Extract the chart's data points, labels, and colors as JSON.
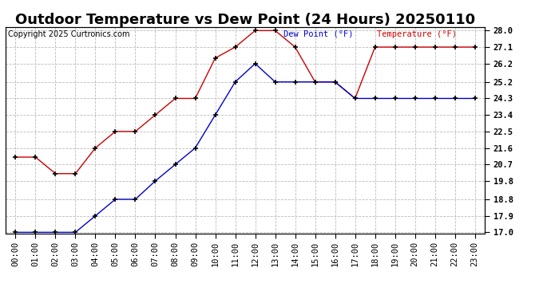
{
  "title": "Outdoor Temperature vs Dew Point (24 Hours) 20250110",
  "copyright": "Copyright 2025 Curtronics.com",
  "legend_dew": "Dew Point (°F)",
  "legend_temp": "Temperature (°F)",
  "hours": [
    "00:00",
    "01:00",
    "02:00",
    "03:00",
    "04:00",
    "05:00",
    "06:00",
    "07:00",
    "08:00",
    "09:00",
    "10:00",
    "11:00",
    "12:00",
    "13:00",
    "14:00",
    "15:00",
    "16:00",
    "17:00",
    "18:00",
    "19:00",
    "20:00",
    "21:00",
    "22:00",
    "23:00"
  ],
  "temp_values": [
    21.1,
    21.1,
    20.2,
    20.2,
    21.6,
    22.5,
    22.5,
    23.4,
    24.3,
    24.3,
    26.5,
    27.1,
    28.0,
    28.0,
    27.1,
    25.2,
    25.2,
    24.3,
    27.1,
    27.1,
    27.1,
    27.1,
    27.1,
    27.1
  ],
  "dew_values": [
    17.0,
    17.0,
    17.0,
    17.0,
    17.9,
    18.8,
    18.8,
    19.8,
    20.7,
    21.6,
    23.4,
    25.2,
    26.2,
    25.2,
    25.2,
    25.2,
    25.2,
    24.3,
    24.3,
    24.3,
    24.3,
    24.3,
    24.3,
    24.3
  ],
  "ylim_min": 17.0,
  "ylim_max": 28.0,
  "yticks": [
    17.0,
    17.9,
    18.8,
    19.8,
    20.7,
    21.6,
    22.5,
    23.4,
    24.3,
    25.2,
    26.2,
    27.1,
    28.0
  ],
  "temp_color": "#cc0000",
  "dew_color": "#0000cc",
  "marker_color": "black",
  "background_color": "white",
  "grid_color": "#bbbbbb",
  "title_fontsize": 13,
  "tick_fontsize": 7.5
}
